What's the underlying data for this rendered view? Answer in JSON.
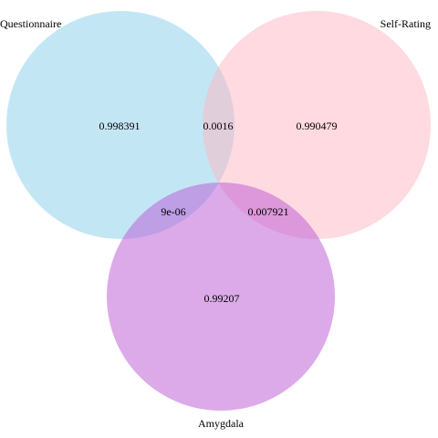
{
  "venn": {
    "sets": [
      {
        "key": "questionnaire",
        "name": "Questionnaire",
        "color": "#87ceeb"
      },
      {
        "key": "self_rating",
        "name": "Self-Rating",
        "color": "#ffb6c1"
      },
      {
        "key": "amygdala",
        "name": "Amygdala",
        "color": "#ba55d3"
      }
    ],
    "regions": {
      "questionnaire_only": "0.998391",
      "self_rating_only": "0.990479",
      "amygdala_only": "0.99207",
      "questionnaire_self_rating": "0.0016",
      "questionnaire_amygdala": "9e-06",
      "self_rating_amygdala": "0.007921"
    },
    "fill_opacity": 0.5
  }
}
